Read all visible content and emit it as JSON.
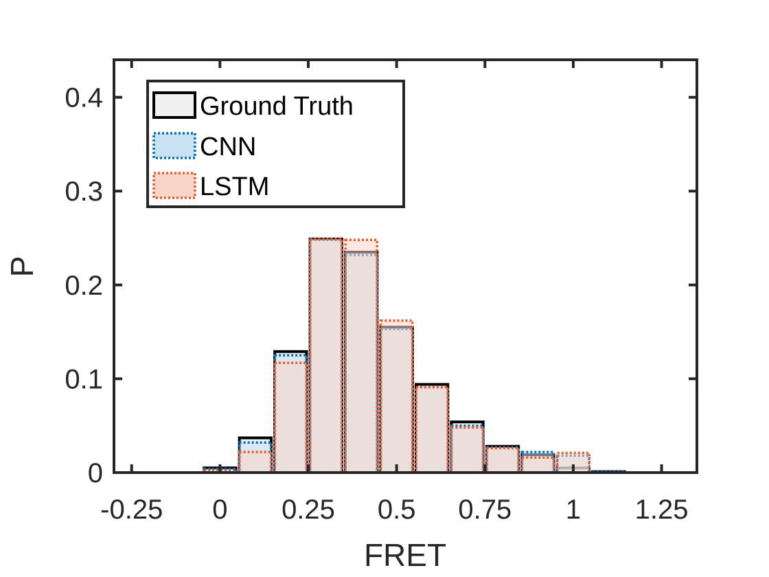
{
  "chart_data": {
    "type": "bar",
    "title": "",
    "xlabel": "FRET",
    "ylabel": "P",
    "xlim": [
      -0.3,
      1.35
    ],
    "ylim": [
      0,
      0.44
    ],
    "bin_width": 0.1,
    "xticks": [
      -0.25,
      0,
      0.25,
      0.5,
      0.75,
      1,
      1.25
    ],
    "xtick_labels": [
      "-0.25",
      "0",
      "0.25",
      "0.5",
      "0.75",
      "1",
      "1.25"
    ],
    "yticks": [
      0,
      0.1,
      0.2,
      0.3,
      0.4
    ],
    "ytick_labels": [
      "0",
      "0.1",
      "0.2",
      "0.3",
      "0.4"
    ],
    "x": [
      -0.2,
      -0.1,
      0.0,
      0.1,
      0.2,
      0.3,
      0.4,
      0.5,
      0.6,
      0.7,
      0.8,
      0.9,
      1.0,
      1.1,
      1.2
    ],
    "series": [
      {
        "name": "Ground Truth",
        "style": "solid",
        "edge_color": "#000000",
        "fill_color": "#f0f0f0",
        "values": [
          0.0,
          0.0,
          0.005,
          0.037,
          0.129,
          0.249,
          0.235,
          0.155,
          0.094,
          0.054,
          0.028,
          0.019,
          0.005,
          0.001,
          0.0
        ]
      },
      {
        "name": "CNN",
        "style": "dotted",
        "edge_color": "#0072bd",
        "fill_color": "#c9e2f3",
        "values": [
          0.0,
          0.0,
          0.004,
          0.032,
          0.125,
          0.248,
          0.232,
          0.153,
          0.091,
          0.05,
          0.027,
          0.022,
          0.018,
          0.001,
          0.0
        ]
      },
      {
        "name": "LSTM",
        "style": "dotted",
        "edge_color": "#f05a28",
        "fill_color": "#fbd6c8",
        "values": [
          0.0,
          0.0,
          0.002,
          0.022,
          0.117,
          0.249,
          0.248,
          0.162,
          0.091,
          0.048,
          0.026,
          0.016,
          0.021,
          0.0,
          0.0
        ]
      }
    ],
    "legend_position": "top-left",
    "grid": false
  }
}
